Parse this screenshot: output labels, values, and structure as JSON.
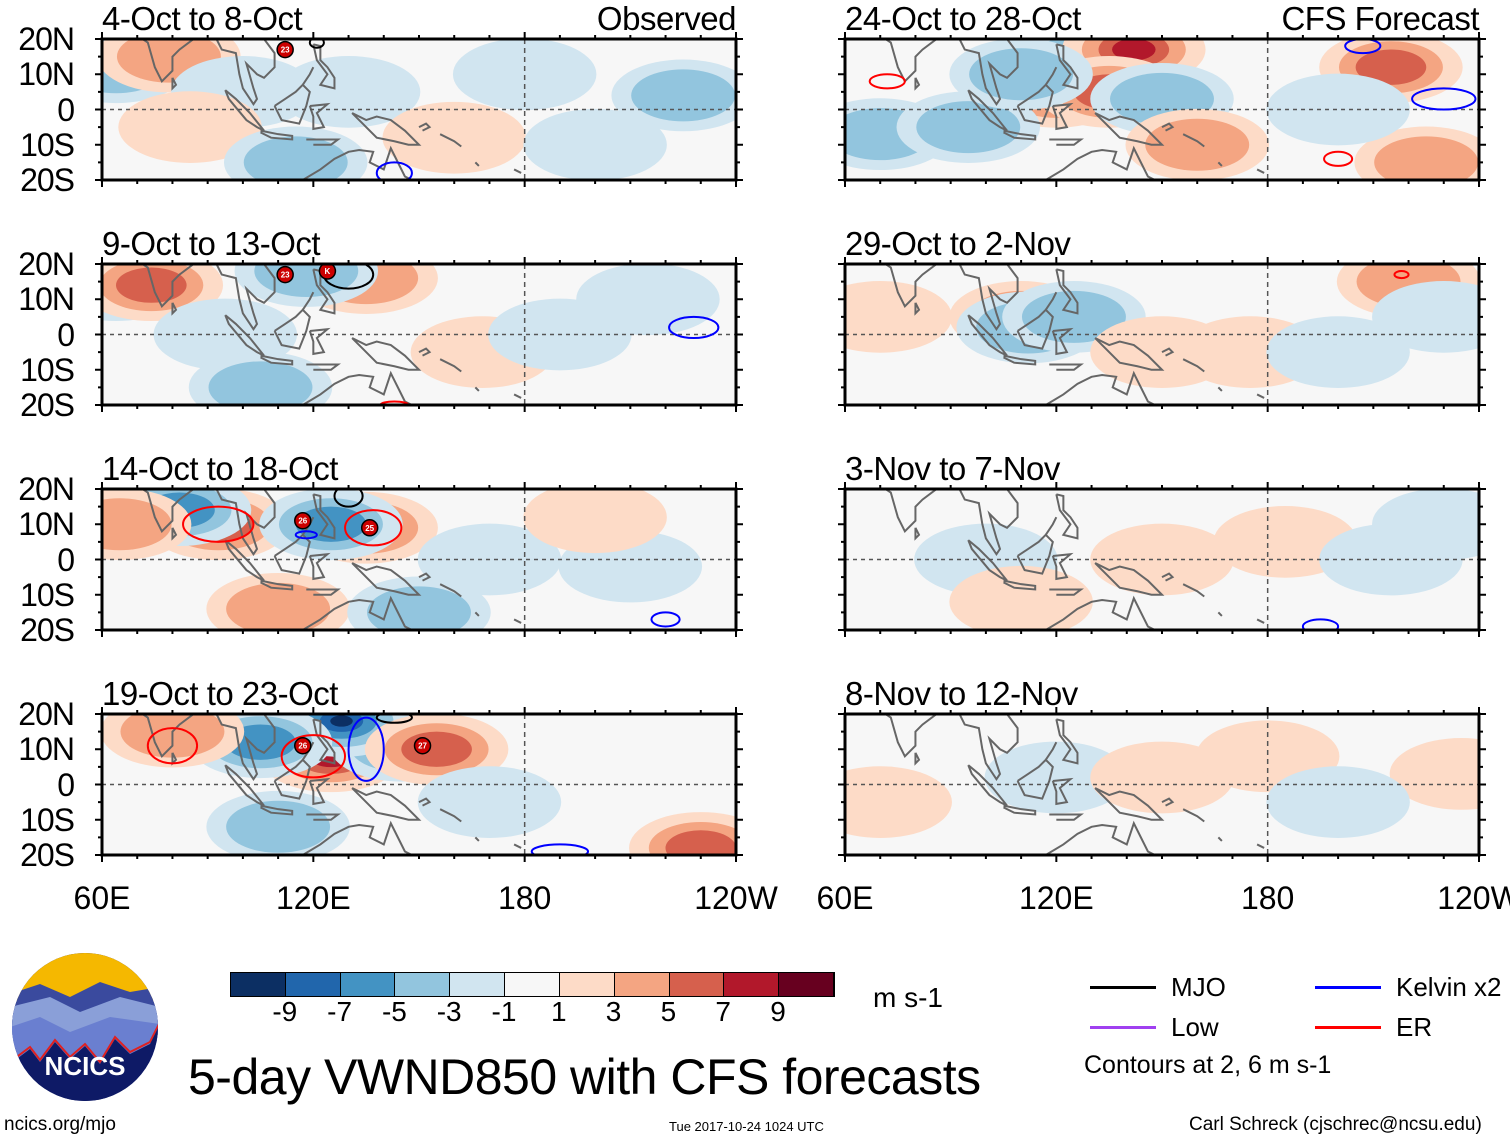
{
  "figure": {
    "title": "5-day VWND850 with CFS forecasts",
    "logo_text": "NCICS",
    "url": "ncics.org/mjo",
    "timestamp": "Tue 2017-10-24 1024 UTC",
    "author": "Carl Schreck (cjschrec@ncsu.edu)"
  },
  "axes": {
    "lat_labels": [
      "20N",
      "10N",
      "0",
      "10S",
      "20S"
    ],
    "lon_labels": [
      "60E",
      "120E",
      "180",
      "120W"
    ],
    "lon_range": [
      60,
      240
    ],
    "lat_range": [
      -20,
      20
    ]
  },
  "colorbar": {
    "colors": [
      "#0c2f63",
      "#2166ac",
      "#4393c3",
      "#92c5de",
      "#d1e5f0",
      "#f7f7f7",
      "#fddbc7",
      "#f4a582",
      "#d6604d",
      "#b2182b",
      "#67001f"
    ],
    "labels": [
      "-9",
      "-7",
      "-5",
      "-3",
      "-1",
      "1",
      "3",
      "5",
      "7",
      "9"
    ],
    "units": "m s-1"
  },
  "legend": {
    "items": [
      {
        "label": "MJO",
        "color": "#000000"
      },
      {
        "label": "Kelvin x2",
        "color": "#0000ff"
      },
      {
        "label": "Low",
        "color": "#a040f0"
      },
      {
        "label": "ER",
        "color": "#ff0000"
      }
    ],
    "note": "Contours at 2, 6 m s-1"
  },
  "panels": [
    {
      "title": "4-Oct to 8-Oct",
      "tag": "Observed",
      "anoms": [
        [
          64,
          12,
          -3
        ],
        [
          79,
          15,
          4
        ],
        [
          100,
          5,
          -2
        ],
        [
          130,
          5,
          -2
        ],
        [
          160,
          -8,
          2
        ],
        [
          180,
          10,
          -2
        ],
        [
          225,
          4,
          -3
        ],
        [
          200,
          -10,
          -2
        ],
        [
          85,
          -5,
          2
        ],
        [
          115,
          -15,
          -3
        ]
      ],
      "contours": [
        [
          "MJO",
          121,
          19,
          2,
          1.5
        ],
        [
          "Kelvin",
          143,
          -18,
          5,
          3
        ]
      ],
      "storms": [
        [
          112,
          17,
          "23"
        ]
      ]
    },
    {
      "title": "9-Oct to 13-Oct",
      "tag": "",
      "anoms": [
        [
          64,
          14,
          -3
        ],
        [
          74,
          14,
          5
        ],
        [
          95,
          0,
          -2
        ],
        [
          135,
          16,
          4
        ],
        [
          168,
          -5,
          2
        ],
        [
          190,
          0,
          -2
        ],
        [
          215,
          10,
          -2
        ],
        [
          105,
          -15,
          -3
        ],
        [
          118,
          18,
          -4
        ]
      ],
      "contours": [
        [
          "MJO",
          130,
          17,
          7,
          4
        ],
        [
          "Kelvin",
          228,
          2,
          7,
          3
        ],
        [
          "ER",
          143,
          -20,
          4,
          1
        ]
      ],
      "storms": [
        [
          112,
          17,
          "23"
        ],
        [
          124,
          18,
          "K"
        ]
      ]
    },
    {
      "title": "14-Oct to 18-Oct",
      "tag": "",
      "anoms": [
        [
          93,
          10,
          7
        ],
        [
          82,
          14,
          -5
        ],
        [
          135,
          9,
          9
        ],
        [
          125,
          10,
          -5
        ],
        [
          110,
          -14,
          3
        ],
        [
          150,
          -15,
          -4
        ],
        [
          210,
          -2,
          -2
        ],
        [
          65,
          10,
          3
        ],
        [
          170,
          0,
          -2
        ],
        [
          200,
          12,
          2
        ]
      ],
      "contours": [
        [
          "ER",
          93,
          10,
          10,
          5
        ],
        [
          "ER",
          137,
          9,
          8,
          5
        ],
        [
          "Kelvin",
          118,
          7,
          3,
          1
        ],
        [
          "MJO",
          130,
          18,
          4,
          3
        ],
        [
          "Kelvin",
          220,
          -17,
          4,
          2
        ]
      ],
      "storms": [
        [
          117,
          11,
          "26"
        ],
        [
          136,
          9,
          "25"
        ]
      ]
    },
    {
      "title": "19-Oct to 23-Oct",
      "tag": "",
      "anoms": [
        [
          133,
          14,
          9
        ],
        [
          125,
          8,
          7
        ],
        [
          145,
          11,
          -9
        ],
        [
          128,
          18,
          -9
        ],
        [
          105,
          12,
          -5
        ],
        [
          155,
          10,
          5
        ],
        [
          80,
          15,
          3
        ],
        [
          230,
          -18,
          5
        ],
        [
          110,
          -12,
          -3
        ],
        [
          170,
          -5,
          -2
        ]
      ],
      "contours": [
        [
          "ER",
          80,
          11,
          7,
          5
        ],
        [
          "ER",
          120,
          8,
          9,
          6
        ],
        [
          "Kelvin",
          135,
          10,
          5,
          9
        ],
        [
          "MJO",
          143,
          19,
          5,
          1.5
        ],
        [
          "Kelvin",
          190,
          -19,
          8,
          2
        ]
      ],
      "storms": [
        [
          117,
          11,
          "26"
        ],
        [
          151,
          11,
          "27"
        ]
      ]
    },
    {
      "title": "24-Oct to 28-Oct",
      "tag": "CFS Forecast",
      "anoms": [
        [
          128,
          14,
          -7
        ],
        [
          142,
          17,
          8
        ],
        [
          120,
          5,
          4
        ],
        [
          135,
          5,
          5
        ],
        [
          150,
          3,
          -4
        ],
        [
          215,
          12,
          5
        ],
        [
          160,
          -10,
          3
        ],
        [
          70,
          -7,
          -3
        ],
        [
          225,
          -15,
          4
        ],
        [
          95,
          -5,
          -3
        ],
        [
          200,
          0,
          -2
        ],
        [
          110,
          10,
          -3
        ]
      ],
      "contours": [
        [
          "ER",
          72,
          8,
          5,
          2
        ],
        [
          "Kelvin",
          230,
          3,
          9,
          3
        ],
        [
          "ER",
          200,
          -14,
          4,
          2
        ],
        [
          "Kelvin",
          207,
          18,
          5,
          2
        ]
      ],
      "storms": []
    },
    {
      "title": "29-Oct to 2-Nov",
      "tag": "",
      "anoms": [
        [
          110,
          5,
          5
        ],
        [
          112,
          2,
          -3
        ],
        [
          125,
          5,
          -4
        ],
        [
          150,
          -5,
          2
        ],
        [
          175,
          -5,
          2
        ],
        [
          200,
          -5,
          -2
        ],
        [
          220,
          15,
          3
        ],
        [
          70,
          5,
          2
        ],
        [
          230,
          5,
          -2
        ]
      ],
      "contours": [
        [
          "ER",
          218,
          17,
          2,
          1
        ]
      ],
      "storms": []
    },
    {
      "title": "3-Nov to 7-Nov",
      "tag": "",
      "anoms": [
        [
          100,
          0,
          -2
        ],
        [
          150,
          0,
          2
        ],
        [
          185,
          5,
          2
        ],
        [
          215,
          0,
          -2
        ],
        [
          230,
          10,
          -2
        ],
        [
          110,
          -12,
          2
        ]
      ],
      "contours": [
        [
          "Kelvin",
          195,
          -19,
          5,
          2
        ]
      ],
      "storms": []
    },
    {
      "title": "8-Nov to 12-Nov",
      "tag": "",
      "anoms": [
        [
          120,
          2,
          -2
        ],
        [
          150,
          2,
          2
        ],
        [
          180,
          8,
          2
        ],
        [
          70,
          -5,
          2
        ],
        [
          235,
          3,
          2
        ],
        [
          200,
          -5,
          -2
        ]
      ],
      "contours": [],
      "storms": []
    }
  ]
}
